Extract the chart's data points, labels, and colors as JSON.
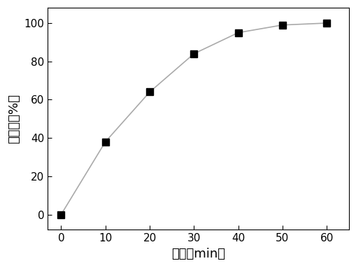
{
  "x": [
    0,
    10,
    20,
    30,
    40,
    50,
    60
  ],
  "y": [
    0,
    38,
    64,
    84,
    95,
    99,
    100
  ],
  "xlabel": "时间（min）",
  "ylabel": "降解率（%）",
  "xlim": [
    -3,
    65
  ],
  "ylim": [
    -8,
    108
  ],
  "xticks": [
    0,
    10,
    20,
    30,
    40,
    50,
    60
  ],
  "yticks": [
    0,
    20,
    40,
    60,
    80,
    100
  ],
  "line_color": "#aaaaaa",
  "marker_color": "black",
  "marker": "s",
  "marker_size": 7,
  "line_width": 1.2,
  "background_color": "#ffffff",
  "xlabel_fontsize": 13,
  "ylabel_fontsize": 13,
  "tick_fontsize": 11
}
